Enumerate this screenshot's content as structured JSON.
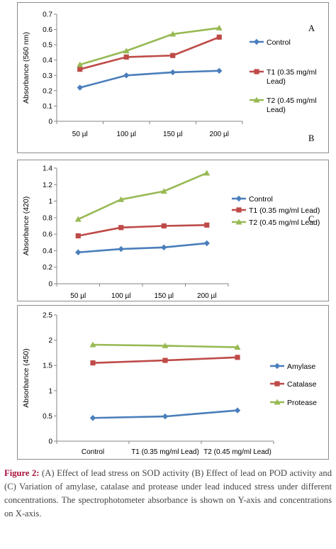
{
  "chart_data": [
    {
      "type": "line",
      "panel_label": "A",
      "extra_label": "B",
      "ylabel": "Absorbance (560 nm)",
      "categories": [
        "50 µl",
        "100 µl",
        "150 µl",
        "200 µl"
      ],
      "ylim": [
        0,
        0.7
      ],
      "yticks": [
        "0",
        "0.1",
        "0.2",
        "0.3",
        "0.4",
        "0.5",
        "0.6",
        "0.7"
      ],
      "legend_position": "right",
      "series": [
        {
          "name_lines": [
            "Control"
          ],
          "color": "#4a7ebb",
          "marker": "diamond",
          "values": [
            0.22,
            0.3,
            0.32,
            0.33
          ]
        },
        {
          "name_lines": [
            "T1 (0.35 mg/ml",
            "Lead)"
          ],
          "color": "#be4b48",
          "marker": "square",
          "values": [
            0.34,
            0.42,
            0.43,
            0.55
          ]
        },
        {
          "name_lines": [
            "T2 (0.45 mg/ml",
            "Lead)"
          ],
          "color": "#98b954",
          "marker": "triangle",
          "values": [
            0.37,
            0.46,
            0.57,
            0.61
          ]
        }
      ]
    },
    {
      "type": "line",
      "panel_label": "C",
      "ylabel": "Absorbance (420)",
      "categories": [
        "50 µl",
        "100 µl",
        "150 µl",
        "200 µl"
      ],
      "ylim": [
        0,
        1.4
      ],
      "yticks": [
        "0",
        "0.2",
        "0.4",
        "0.6",
        "0.8",
        "1",
        "1.2",
        "1.4"
      ],
      "legend_position": "right",
      "series": [
        {
          "name_lines": [
            "Control"
          ],
          "color": "#4a7ebb",
          "marker": "diamond",
          "values": [
            0.38,
            0.42,
            0.44,
            0.49
          ]
        },
        {
          "name_lines": [
            "T1 (0.35 mg/ml Lead)"
          ],
          "color": "#be4b48",
          "marker": "square",
          "values": [
            0.58,
            0.68,
            0.7,
            0.71
          ]
        },
        {
          "name_lines": [
            "T2 (0.45 mg/ml Lead)"
          ],
          "color": "#98b954",
          "marker": "triangle",
          "values": [
            0.78,
            1.02,
            1.12,
            1.34
          ]
        }
      ]
    },
    {
      "type": "line",
      "ylabel": "Absorbance (450)",
      "categories": [
        "Control",
        "T1 (0.35 mg/ml Lead)",
        "T2 (0.45 mg/ml Lead)"
      ],
      "ylim": [
        0,
        2.5
      ],
      "yticks": [
        "0",
        "0.5",
        "1",
        "1.5",
        "2",
        "2.5"
      ],
      "legend_position": "right",
      "series": [
        {
          "name_lines": [
            "Amylase"
          ],
          "color": "#4a7ebb",
          "marker": "diamond",
          "values": [
            0.46,
            0.49,
            0.61
          ]
        },
        {
          "name_lines": [
            "Catalase"
          ],
          "color": "#be4b48",
          "marker": "square",
          "values": [
            1.55,
            1.6,
            1.66
          ]
        },
        {
          "name_lines": [
            "Protease"
          ],
          "color": "#98b954",
          "marker": "triangle",
          "values": [
            1.91,
            1.89,
            1.86
          ]
        }
      ]
    }
  ],
  "caption": {
    "figure_label": "Figure 2:",
    "text": " (A) Effect of lead stress on SOD activity (B) Effect of lead on POD activity and (C) Variation of amylase, catalase and protease under lead induced stress under different concentrations. The spectrophotometer absorbance is shown on Y-axis and concentrations on X-axis."
  }
}
